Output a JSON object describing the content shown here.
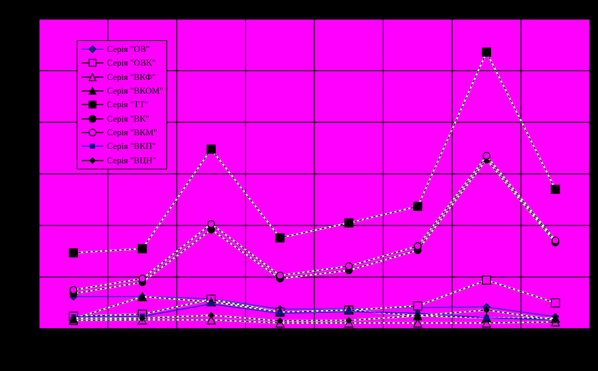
{
  "window": {
    "outer_background": "#000000"
  },
  "chart": {
    "plot_background": "#FF00FF",
    "grid_color": "#000000",
    "border_color": "#000000",
    "halo_color": "#FFFFFF",
    "title": "",
    "axis_tick_labels_visible": false
  },
  "legend": {
    "background": "#FF00FF",
    "border_color": "#000000",
    "text_color": "#000000",
    "position": "top-left-inside"
  },
  "chart_data": {
    "type": "line",
    "x": [
      1,
      2,
      3,
      4,
      5,
      6,
      7,
      8
    ],
    "xlabel": "",
    "ylabel": "",
    "ylim": [
      0,
      6
    ],
    "y_gridline_step": 1,
    "x_gridlines": 8,
    "grid": true,
    "legend_position": "top-left-inside",
    "series": [
      {
        "name": "Серія \"ОВ\"",
        "line_color": "#3333CC",
        "line_style": "solid",
        "marker": "diamond",
        "marker_fill": "#222288",
        "marker_stroke": "#111166",
        "marker_size": 5,
        "values": [
          0.62,
          0.62,
          0.58,
          0.38,
          0.38,
          0.41,
          0.42,
          0.23
        ]
      },
      {
        "name": "Серія \"ОВК\"",
        "line_color": "#000000",
        "line_style": "dash-white",
        "marker": "square-open",
        "marker_fill": "#FF00FF",
        "marker_stroke": "#000000",
        "marker_size": 6,
        "values": [
          0.24,
          0.28,
          0.57,
          0.32,
          0.36,
          0.44,
          0.94,
          0.5
        ]
      },
      {
        "name": "Серія \"ВКФ\"",
        "line_color": "#000000",
        "line_style": "dash-white",
        "marker": "triangle-open",
        "marker_fill": "#FF00FF",
        "marker_stroke": "#000000",
        "marker_size": 6,
        "values": [
          0.16,
          0.17,
          0.17,
          0.11,
          0.11,
          0.11,
          0.11,
          0.13
        ]
      },
      {
        "name": "Серія \"ВКОМ\"",
        "line_color": "#000000",
        "line_style": "dash-white",
        "marker": "triangle",
        "marker_fill": "#000000",
        "marker_stroke": "#000000",
        "marker_size": 6,
        "values": [
          0.19,
          0.62,
          0.52,
          0.32,
          0.36,
          0.25,
          0.21,
          0.2
        ]
      },
      {
        "name": "Серія \"ТТ\"",
        "line_color": "#000000",
        "line_style": "dash-white",
        "marker": "square",
        "marker_fill": "#000000",
        "marker_stroke": "#000000",
        "marker_size": 6,
        "values": [
          1.47,
          1.55,
          3.48,
          1.76,
          2.05,
          2.37,
          5.36,
          2.7
        ]
      },
      {
        "name": "Серія \"ВК\"",
        "line_color": "#000000",
        "line_style": "dash-white",
        "marker": "circle",
        "marker_fill": "#000000",
        "marker_stroke": "#000000",
        "marker_size": 5,
        "values": [
          0.68,
          0.9,
          1.92,
          0.97,
          1.13,
          1.52,
          3.28,
          1.67
        ]
      },
      {
        "name": "Серія \"ВКМ\"",
        "line_color": "#000000",
        "line_style": "dash-white",
        "marker": "circle-open",
        "marker_fill": "#FF00FF",
        "marker_stroke": "#000000",
        "marker_size": 5,
        "values": [
          0.75,
          0.97,
          2.03,
          1.03,
          1.21,
          1.6,
          3.35,
          1.71
        ]
      },
      {
        "name": "Серія \"ВКП\"",
        "line_color": "#2020DD",
        "line_style": "solid",
        "marker": "square",
        "marker_fill": "#111188",
        "marker_stroke": "#111188",
        "marker_size": 3,
        "values": [
          0.23,
          0.24,
          0.48,
          0.3,
          0.33,
          0.3,
          0.21,
          0.17
        ]
      },
      {
        "name": "Серія \"ВЦН\"",
        "line_color": "#000000",
        "line_style": "dash-white",
        "marker": "diamond",
        "marker_fill": "#000000",
        "marker_stroke": "#000000",
        "marker_size": 4,
        "values": [
          0.2,
          0.2,
          0.26,
          0.15,
          0.16,
          0.25,
          0.36,
          0.17
        ]
      }
    ]
  }
}
